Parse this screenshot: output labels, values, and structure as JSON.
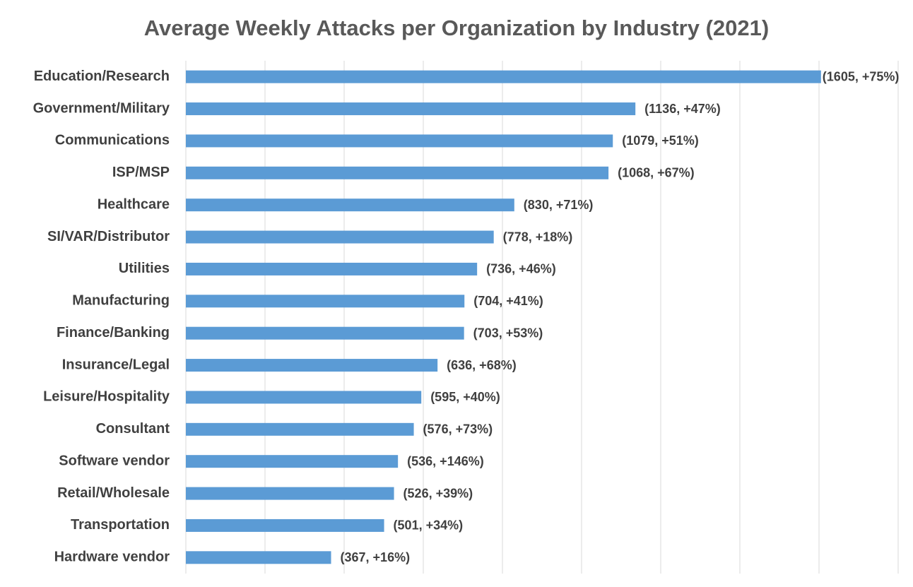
{
  "chart_data": {
    "type": "hbar",
    "title": "Average Weekly Attacks per Organization by Industry (2021)",
    "categories": [
      "Education/Research",
      "Government/Military",
      "Communications",
      "ISP/MSP",
      "Healthcare",
      "SI/VAR/Distributor",
      "Utilities",
      "Manufacturing",
      "Finance/Banking",
      "Insurance/Legal",
      "Leisure/Hospitality",
      "Consultant",
      "Software vendor",
      "Retail/Wholesale",
      "Transportation",
      "Hardware vendor"
    ],
    "values": [
      1605,
      1136,
      1079,
      1068,
      830,
      778,
      736,
      704,
      703,
      636,
      595,
      576,
      536,
      526,
      501,
      367
    ],
    "value_labels": [
      "(1605, +75%)",
      "(1136, +47%)",
      "(1079, +51%)",
      "(1068, +67%)",
      "(830, +71%)",
      "(778, +18%)",
      "(736, +46%)",
      "(704, +41%)",
      "(703, +53%)",
      "(636, +68%)",
      "(595, +40%)",
      "(576, +73%)",
      "(536, +146%)",
      "(526, +39%)",
      "(501, +34%)",
      "(367, +16%)"
    ],
    "color": "#5b9bd5",
    "xlim": [
      0,
      1800
    ],
    "xticks": [
      0,
      200,
      400,
      600,
      800,
      1000,
      1200,
      1400,
      1600,
      1800
    ],
    "grid": true
  }
}
